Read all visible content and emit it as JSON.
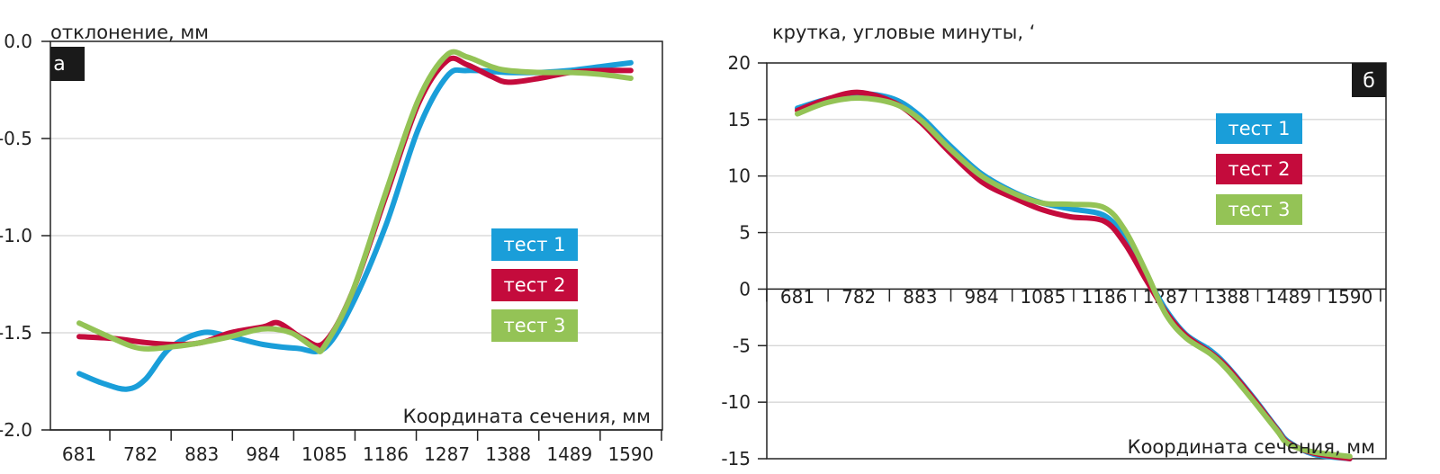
{
  "colors": {
    "test1": "#1a9ed9",
    "test2": "#c40b3c",
    "test3": "#94c356"
  },
  "chart_data": [
    {
      "type": "line",
      "panel_label": "а",
      "ylabel": "отклонение, мм",
      "xlabel": "Координата сечения, мм",
      "ylim": [
        -2.0,
        0.0
      ],
      "yticks": [
        "0.0",
        "-0.5",
        "-1.0",
        "-1.5",
        "-2.0"
      ],
      "xticks": [
        "681",
        "782",
        "883",
        "984",
        "1085",
        "1186",
        "1287",
        "1388",
        "1489",
        "1590"
      ],
      "grid": true,
      "legend_position": "center-right",
      "series": [
        {
          "name": "тест 1",
          "color_key": "test1",
          "x": [
            681,
            720,
            760,
            790,
            830,
            883,
            930,
            984,
            1040,
            1085,
            1130,
            1186,
            1240,
            1287,
            1320,
            1388,
            1440,
            1489,
            1540,
            1590
          ],
          "y": [
            -1.71,
            -1.76,
            -1.79,
            -1.74,
            -1.58,
            -1.5,
            -1.52,
            -1.56,
            -1.58,
            -1.58,
            -1.36,
            -0.95,
            -0.45,
            -0.18,
            -0.15,
            -0.16,
            -0.16,
            -0.15,
            -0.13,
            -0.11
          ]
        },
        {
          "name": "тест 2",
          "color_key": "test2",
          "x": [
            681,
            740,
            790,
            840,
            883,
            930,
            984,
            1010,
            1050,
            1085,
            1130,
            1186,
            1240,
            1287,
            1320,
            1360,
            1388,
            1440,
            1489,
            1540,
            1590
          ],
          "y": [
            -1.52,
            -1.53,
            -1.55,
            -1.56,
            -1.55,
            -1.5,
            -1.47,
            -1.45,
            -1.53,
            -1.55,
            -1.3,
            -0.8,
            -0.32,
            -0.1,
            -0.12,
            -0.18,
            -0.21,
            -0.19,
            -0.16,
            -0.15,
            -0.15
          ]
        },
        {
          "name": "тест 3",
          "color_key": "test3",
          "x": [
            681,
            730,
            782,
            840,
            883,
            930,
            984,
            1030,
            1070,
            1085,
            1130,
            1186,
            1240,
            1287,
            1320,
            1360,
            1388,
            1440,
            1489,
            1540,
            1590
          ],
          "y": [
            -1.45,
            -1.52,
            -1.58,
            -1.57,
            -1.55,
            -1.52,
            -1.48,
            -1.5,
            -1.58,
            -1.57,
            -1.3,
            -0.78,
            -0.3,
            -0.07,
            -0.08,
            -0.13,
            -0.15,
            -0.16,
            -0.16,
            -0.17,
            -0.19
          ]
        }
      ]
    },
    {
      "type": "line",
      "panel_label": "б",
      "ylabel": "крутка, угловые минуты, ʻ",
      "xlabel": "Координата сечения, мм",
      "ylim": [
        -15,
        20
      ],
      "yticks": [
        "20",
        "15",
        "10",
        "5",
        "0",
        "-5",
        "-10",
        "-15"
      ],
      "xticks": [
        "681",
        "782",
        "883",
        "984",
        "1085",
        "1186",
        "1287",
        "1388",
        "1489",
        "1590"
      ],
      "grid": true,
      "legend_position": "top-right",
      "series": [
        {
          "name": "тест 1",
          "color_key": "test1",
          "x": [
            681,
            730,
            782,
            840,
            883,
            930,
            984,
            1040,
            1085,
            1130,
            1186,
            1220,
            1255,
            1287,
            1320,
            1360,
            1388,
            1430,
            1470,
            1489,
            1530,
            1590
          ],
          "y": [
            16.0,
            16.8,
            17.3,
            16.8,
            15.3,
            12.8,
            10.2,
            8.5,
            7.6,
            7.1,
            6.5,
            4.5,
            1.2,
            -1.8,
            -4.0,
            -5.4,
            -6.8,
            -9.5,
            -12.3,
            -13.5,
            -14.6,
            -15.0
          ]
        },
        {
          "name": "тест 2",
          "color_key": "test2",
          "x": [
            681,
            730,
            782,
            840,
            883,
            930,
            984,
            1040,
            1085,
            1130,
            1186,
            1220,
            1255,
            1287,
            1320,
            1360,
            1388,
            1430,
            1470,
            1489,
            1530,
            1590
          ],
          "y": [
            15.8,
            16.8,
            17.4,
            16.5,
            14.8,
            12.2,
            9.5,
            8.0,
            7.0,
            6.4,
            6.0,
            4.0,
            0.8,
            -2.0,
            -4.1,
            -5.6,
            -6.9,
            -9.6,
            -12.4,
            -13.6,
            -14.5,
            -15.0
          ]
        },
        {
          "name": "тест 3",
          "color_key": "test3",
          "x": [
            681,
            730,
            782,
            840,
            883,
            930,
            984,
            1040,
            1085,
            1130,
            1186,
            1220,
            1255,
            1287,
            1320,
            1360,
            1388,
            1430,
            1470,
            1489,
            1530,
            1590
          ],
          "y": [
            15.5,
            16.5,
            16.9,
            16.4,
            15.0,
            12.5,
            10.0,
            8.4,
            7.6,
            7.5,
            7.2,
            5.2,
            1.5,
            -2.2,
            -4.3,
            -5.7,
            -7.1,
            -9.8,
            -12.5,
            -13.7,
            -14.4,
            -14.8
          ]
        }
      ]
    }
  ]
}
